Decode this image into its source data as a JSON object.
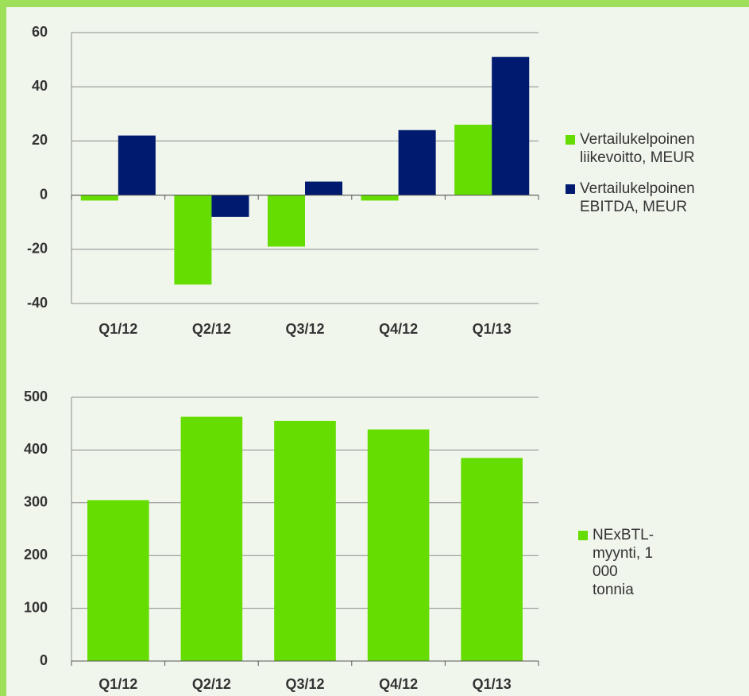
{
  "chart_data": [
    {
      "type": "bar",
      "categories": [
        "Q1/12",
        "Q2/12",
        "Q3/12",
        "Q4/12",
        "Q1/13"
      ],
      "series": [
        {
          "name": "Vertailukelpoinen liikevoitto, MEUR",
          "color": "#66dd00",
          "values": [
            -2,
            -33,
            -19,
            -2,
            26
          ]
        },
        {
          "name": "Vertailukelpoinen EBITDA, MEUR",
          "color": "#001a70",
          "values": [
            22,
            -8,
            5,
            24,
            51
          ]
        }
      ],
      "ylim": [
        -40,
        60
      ],
      "yticks": [
        -40,
        -20,
        0,
        20,
        40,
        60
      ],
      "grid": true
    },
    {
      "type": "bar",
      "categories": [
        "Q1/12",
        "Q2/12",
        "Q3/12",
        "Q4/12",
        "Q1/13"
      ],
      "series": [
        {
          "name": "NExBTL-myynti, 1 000 tonnia",
          "color": "#66dd00",
          "values": [
            305,
            463,
            455,
            439,
            385
          ]
        }
      ],
      "ylim": [
        0,
        500
      ],
      "yticks": [
        0,
        100,
        200,
        300,
        400,
        500
      ],
      "grid": true
    }
  ]
}
